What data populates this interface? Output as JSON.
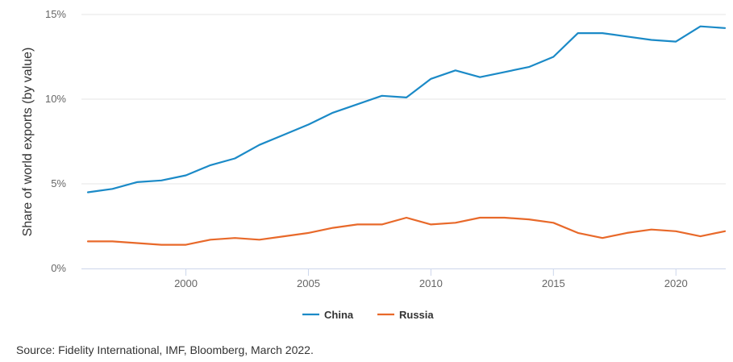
{
  "chart_data": {
    "type": "line",
    "title": "",
    "xlabel": "",
    "ylabel": "Share of world exports (by value)",
    "xlim": [
      1996,
      2022
    ],
    "ylim": [
      0,
      15
    ],
    "x_ticks": [
      2000,
      2005,
      2010,
      2015,
      2020
    ],
    "x_tick_labels": [
      "2000",
      "2005",
      "2010",
      "2015",
      "2020"
    ],
    "y_ticks": [
      0,
      5,
      10,
      15
    ],
    "y_tick_labels": [
      "0%",
      "5%",
      "10%",
      "15%"
    ],
    "grid": "horizontal",
    "legend_position": "bottom-center",
    "x": [
      1996,
      1997,
      1998,
      1999,
      2000,
      2001,
      2002,
      2003,
      2004,
      2005,
      2006,
      2007,
      2008,
      2009,
      2010,
      2011,
      2012,
      2013,
      2014,
      2015,
      2016,
      2017,
      2018,
      2019,
      2020,
      2021,
      2022
    ],
    "series": [
      {
        "name": "China",
        "color": "#1b8ac7",
        "values": [
          4.5,
          4.7,
          5.1,
          5.2,
          5.5,
          6.1,
          6.5,
          7.3,
          7.9,
          8.5,
          9.2,
          9.7,
          10.2,
          10.1,
          11.2,
          11.7,
          11.3,
          11.6,
          11.9,
          12.5,
          13.9,
          13.9,
          13.7,
          13.5,
          13.4,
          14.3,
          14.2
        ]
      },
      {
        "name": "Russia",
        "color": "#e8692a",
        "values": [
          1.6,
          1.6,
          1.5,
          1.4,
          1.4,
          1.7,
          1.8,
          1.7,
          1.9,
          2.1,
          2.4,
          2.6,
          2.6,
          3.0,
          2.6,
          2.7,
          3.0,
          3.0,
          2.9,
          2.7,
          2.1,
          1.8,
          2.1,
          2.3,
          2.2,
          1.9,
          2.2
        ]
      }
    ]
  },
  "source_note": "Source: Fidelity International, IMF, Bloomberg, March 2022."
}
